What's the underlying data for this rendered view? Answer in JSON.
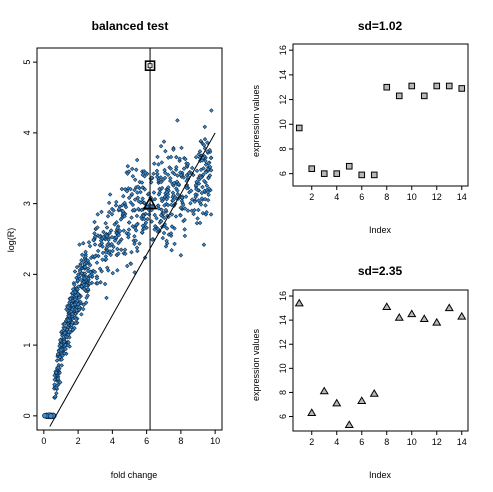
{
  "chart_data": [
    {
      "type": "scatter",
      "title": "balanced test",
      "xlabel": "fold change",
      "ylabel": "log(R)",
      "xlim": [
        -0.4,
        10.4
      ],
      "ylim": [
        -0.2,
        5.2
      ],
      "xticks": [
        0,
        2,
        4,
        6,
        8,
        10
      ],
      "yticks": [
        0,
        1,
        2,
        3,
        4,
        5
      ],
      "colors": {
        "point_fill": "#3f8fd0",
        "point_edge": "#0d2c4a",
        "line": "#000000"
      },
      "cloud": {
        "description_points_estimated": true,
        "x_range": [
          0.2,
          10.0
        ],
        "approx_count": 900
      },
      "vertical_line_x": 6.2,
      "trend_line": {
        "x": [
          0.35,
          10.0
        ],
        "y": [
          -0.15,
          4.0
        ]
      },
      "markers": [
        {
          "shape": "square",
          "x": 6.2,
          "y": 4.95
        },
        {
          "shape": "triangle",
          "x": 6.2,
          "y": 3.0
        }
      ]
    },
    {
      "type": "scatter",
      "title": "sd=1.02",
      "xlabel": "Index",
      "ylabel": "expression values",
      "xlim": [
        0.5,
        14.5
      ],
      "ylim": [
        5.0,
        16.5
      ],
      "xticks": [
        2,
        4,
        6,
        8,
        10,
        12,
        14
      ],
      "yticks": [
        6,
        8,
        10,
        12,
        14,
        16
      ],
      "marker": "square",
      "x": [
        1,
        2,
        3,
        4,
        5,
        6,
        7,
        8,
        9,
        10,
        11,
        12,
        13,
        14
      ],
      "y": [
        9.7,
        6.4,
        6.0,
        6.0,
        6.6,
        5.9,
        5.9,
        13.0,
        12.3,
        13.1,
        12.3,
        13.1,
        13.1,
        12.9
      ]
    },
    {
      "type": "scatter",
      "title": "sd=2.35",
      "xlabel": "Index",
      "ylabel": "expression values",
      "xlim": [
        0.5,
        14.5
      ],
      "ylim": [
        4.8,
        16.5
      ],
      "xticks": [
        2,
        4,
        6,
        8,
        10,
        12,
        14
      ],
      "yticks": [
        6,
        8,
        10,
        12,
        14,
        16
      ],
      "marker": "triangle",
      "x": [
        1,
        2,
        3,
        4,
        5,
        6,
        7,
        8,
        9,
        10,
        11,
        12,
        13,
        14
      ],
      "y": [
        15.4,
        6.3,
        8.1,
        7.1,
        5.3,
        7.3,
        7.9,
        15.1,
        14.2,
        14.5,
        14.1,
        13.8,
        15.0,
        14.3
      ]
    }
  ]
}
